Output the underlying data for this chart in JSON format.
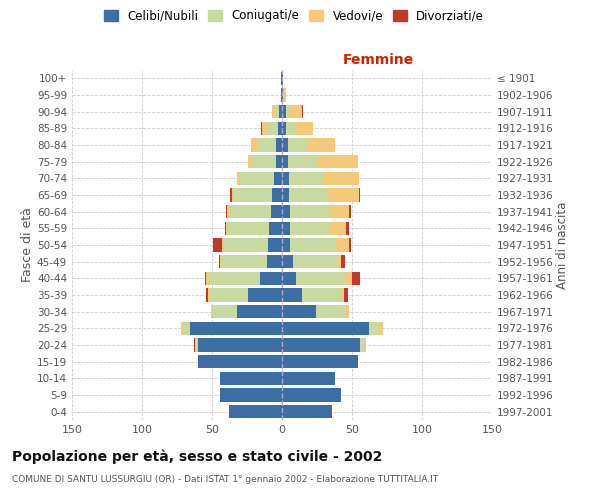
{
  "age_groups": [
    "0-4",
    "5-9",
    "10-14",
    "15-19",
    "20-24",
    "25-29",
    "30-34",
    "35-39",
    "40-44",
    "45-49",
    "50-54",
    "55-59",
    "60-64",
    "65-69",
    "70-74",
    "75-79",
    "80-84",
    "85-89",
    "90-94",
    "95-99",
    "100+"
  ],
  "birth_years": [
    "1997-2001",
    "1992-1996",
    "1987-1991",
    "1982-1986",
    "1977-1981",
    "1972-1976",
    "1967-1971",
    "1962-1966",
    "1957-1961",
    "1952-1956",
    "1947-1951",
    "1942-1946",
    "1937-1941",
    "1932-1936",
    "1927-1931",
    "1922-1926",
    "1917-1921",
    "1912-1916",
    "1907-1911",
    "1902-1906",
    "≤ 1901"
  ],
  "male": {
    "celibi": [
      38,
      44,
      44,
      60,
      60,
      66,
      32,
      24,
      16,
      11,
      10,
      9,
      8,
      7,
      6,
      4,
      4,
      3,
      2,
      1,
      1
    ],
    "coniugati": [
      0,
      0,
      0,
      0,
      2,
      4,
      18,
      28,
      36,
      32,
      32,
      30,
      30,
      28,
      24,
      18,
      14,
      7,
      3,
      0,
      0
    ],
    "vedovi": [
      0,
      0,
      0,
      0,
      0,
      2,
      1,
      1,
      2,
      1,
      1,
      1,
      1,
      1,
      2,
      2,
      4,
      4,
      2,
      0,
      0
    ],
    "divorziati": [
      0,
      0,
      0,
      0,
      1,
      0,
      0,
      1,
      1,
      1,
      6,
      1,
      1,
      1,
      0,
      0,
      0,
      1,
      0,
      0,
      0
    ]
  },
  "female": {
    "nubili": [
      36,
      42,
      38,
      54,
      56,
      62,
      24,
      14,
      10,
      8,
      6,
      6,
      6,
      5,
      5,
      4,
      4,
      3,
      3,
      1,
      1
    ],
    "coniugate": [
      0,
      0,
      0,
      0,
      4,
      8,
      22,
      28,
      36,
      32,
      32,
      28,
      28,
      28,
      24,
      22,
      14,
      7,
      3,
      0,
      0
    ],
    "vedove": [
      0,
      0,
      0,
      0,
      0,
      2,
      2,
      2,
      4,
      2,
      10,
      12,
      14,
      22,
      26,
      28,
      20,
      12,
      8,
      2,
      0
    ],
    "divorziate": [
      0,
      0,
      0,
      0,
      0,
      0,
      0,
      3,
      6,
      3,
      1,
      2,
      1,
      1,
      0,
      0,
      0,
      0,
      1,
      0,
      0
    ]
  },
  "colors": {
    "celibi": "#3c6ea5",
    "coniugati": "#c8daa0",
    "vedovi": "#f5c97a",
    "divorziati": "#c0392b"
  },
  "xlim": 150,
  "title": "Popolazione per età, sesso e stato civile - 2002",
  "subtitle": "COMUNE DI SANTU LUSSURGIU (OR) - Dati ISTAT 1° gennaio 2002 - Elaborazione TUTTITALIA.IT",
  "ylabel_left": "Fasce di età",
  "ylabel_right": "Anni di nascita",
  "xlabel_right": "Femmine",
  "background_color": "#ffffff",
  "grid_color": "#cccccc"
}
